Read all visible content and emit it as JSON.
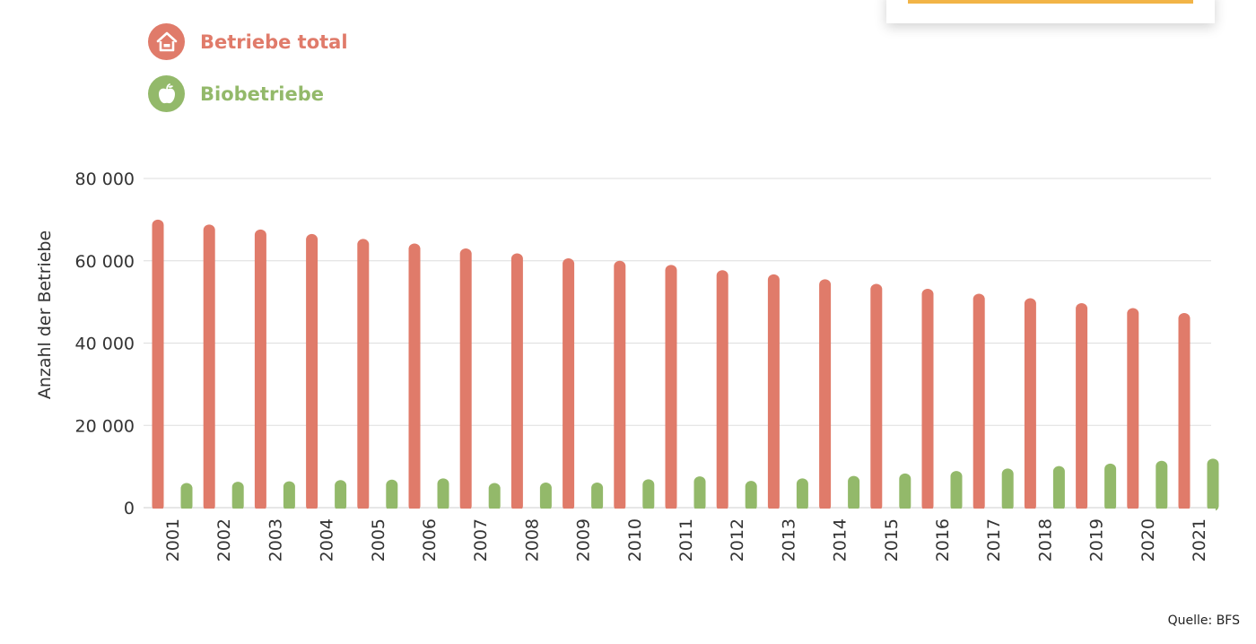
{
  "legend": {
    "total": {
      "label": "Betriebe total",
      "icon": "house-icon",
      "color": "#e07b6a"
    },
    "bio": {
      "label": "Biobetriebe",
      "icon": "apple-icon",
      "color": "#93b96a"
    }
  },
  "source": "Quelle: BFS",
  "chart_data": {
    "type": "bar",
    "title": "",
    "xlabel": "",
    "ylabel": "Anzahl der Betriebe",
    "ylim": [
      0,
      80000
    ],
    "yticks": [
      0,
      20000,
      40000,
      60000,
      80000
    ],
    "ytick_labels": [
      "0",
      "20 000",
      "40 000",
      "60 000",
      "80 000"
    ],
    "grid": true,
    "legend_position": "top-left",
    "categories": [
      "2001",
      "2002",
      "2003",
      "2004",
      "2005",
      "2006",
      "2007",
      "2008",
      "2009",
      "2010",
      "2011",
      "2012",
      "2013",
      "2014",
      "2015",
      "2016",
      "2017",
      "2018",
      "2019",
      "2020",
      "2021"
    ],
    "series": [
      {
        "name": "Betriebe total",
        "color": "#e07b6a",
        "values": [
          70000,
          68800,
          67600,
          66500,
          65300,
          64200,
          63000,
          61800,
          60600,
          60000,
          59000,
          57700,
          56700,
          55500,
          54400,
          53200,
          52000,
          50900,
          49700,
          48500,
          47300
        ]
      },
      {
        "name": "Biobetriebe",
        "color": "#93b96a",
        "values": [
          6000,
          6300,
          6400,
          6700,
          6800,
          7100,
          6000,
          6100,
          6100,
          6900,
          7600,
          6500,
          7100,
          7700,
          8300,
          8900,
          9500,
          10100,
          10700,
          11400,
          11900
        ]
      }
    ]
  }
}
